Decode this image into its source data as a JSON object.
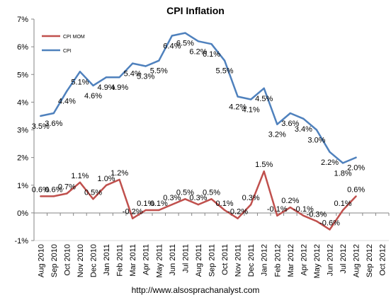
{
  "chart_data": {
    "type": "line",
    "title": "CPI Inflation",
    "xlabel": "",
    "ylabel": "",
    "ylim": [
      -1,
      7
    ],
    "yticks": [
      "-1%",
      "0%",
      "1%",
      "2%",
      "3%",
      "4%",
      "5%",
      "6%",
      "7%"
    ],
    "grid": false,
    "legend_position": "top-left",
    "categories": [
      "Aug 2010",
      "Sep 2010",
      "Oct 2010",
      "Nov 2010",
      "Dec 2010",
      "Jan 2011",
      "Feb 2011",
      "Mar 2011",
      "Apr 2011",
      "May 2011",
      "Jun 2011",
      "Jul 2011",
      "Aug 2011",
      "Sep 2011",
      "Oct 2011",
      "Nov 2011",
      "Dec 2011",
      "Jan 2012",
      "Feb 2012",
      "Mar 2012",
      "Apr 2012",
      "May 2012",
      "Jun 2012",
      "Jul 2012",
      "Aug 2012",
      "Sep 2012",
      "Oct 2012"
    ],
    "series": [
      {
        "name": "CPI MOM",
        "color": "#c0504d",
        "values": [
          0.6,
          0.6,
          0.7,
          1.1,
          0.5,
          1.0,
          1.2,
          -0.2,
          0.1,
          0.1,
          0.3,
          0.5,
          0.3,
          0.5,
          0.1,
          -0.2,
          0.3,
          1.5,
          -0.1,
          0.2,
          -0.1,
          -0.3,
          -0.6,
          0.1,
          0.6,
          null,
          null
        ],
        "labels": [
          "0.6%",
          "0.6%",
          "0.7%",
          "1.1%",
          "0.5%",
          "1.0%",
          "1.2%",
          "-0.2%",
          "0.1%",
          "0.1%",
          "0.3%",
          "0.5%",
          "0.3%",
          "0.5%",
          "0.1%",
          "-0.2%",
          "0.3%",
          "1.5%",
          "-0.1%",
          "0.2%",
          "-0.1%",
          "-0.3%",
          "-0.6%",
          "0.1%",
          "0.6%",
          null,
          null
        ]
      },
      {
        "name": "CPI",
        "color": "#4f81bd",
        "values": [
          3.5,
          3.6,
          4.4,
          5.1,
          4.6,
          4.9,
          4.9,
          5.4,
          5.3,
          5.5,
          6.4,
          6.5,
          6.2,
          6.1,
          5.5,
          4.2,
          4.1,
          4.5,
          3.2,
          3.6,
          3.4,
          3.0,
          2.2,
          1.8,
          2.0,
          null,
          null
        ],
        "labels": [
          "3.5%",
          "3.6%",
          "4.4%",
          "5.1%",
          "4.6%",
          "4.9%",
          "4.9%",
          "5.4%",
          "5.3%",
          "5.5%",
          "6.4%",
          "6.5%",
          "6.2%",
          "6.1%",
          "5.5%",
          "4.2%",
          "4.1%",
          "4.5%",
          "3.2%",
          "3.6%",
          "3.4%",
          "3.0%",
          "2.2%",
          "1.8%",
          "2.0%",
          null,
          null
        ]
      }
    ],
    "footer": "http://www.alsosprachanalyst.com"
  }
}
